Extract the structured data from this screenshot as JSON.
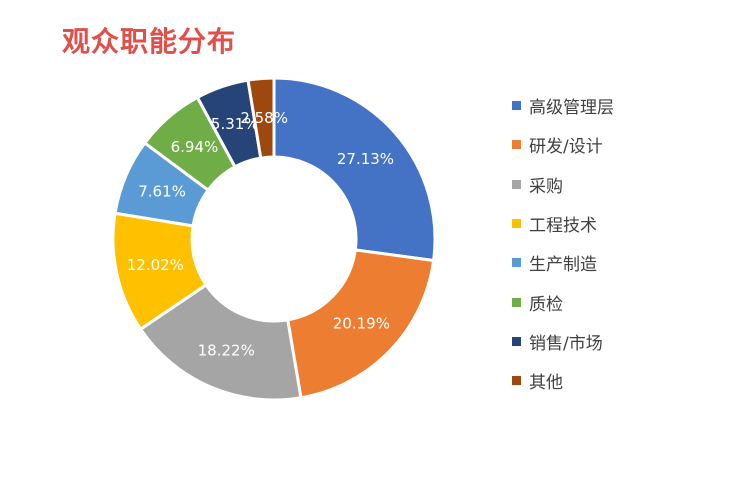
{
  "title": "观众职能分布",
  "chart_data": {
    "type": "pie",
    "donut": true,
    "legend_position": "right",
    "categories": [
      "高级管理层",
      "研发/设计",
      "采购",
      "工程技术",
      "生产制造",
      "质检",
      "销售/市场",
      "其他"
    ],
    "values": [
      27.13,
      20.19,
      18.22,
      12.02,
      7.61,
      6.94,
      5.31,
      2.58
    ],
    "labels": [
      "27.13%",
      "20.19%",
      "18.22%",
      "12.02%",
      "7.61%",
      "6.94%",
      "5.31%",
      "2.58%"
    ],
    "colors": [
      "#4472c4",
      "#ed7d31",
      "#a5a5a5",
      "#ffc000",
      "#5b9bd5",
      "#70ad47",
      "#264478",
      "#9e480e"
    ]
  }
}
